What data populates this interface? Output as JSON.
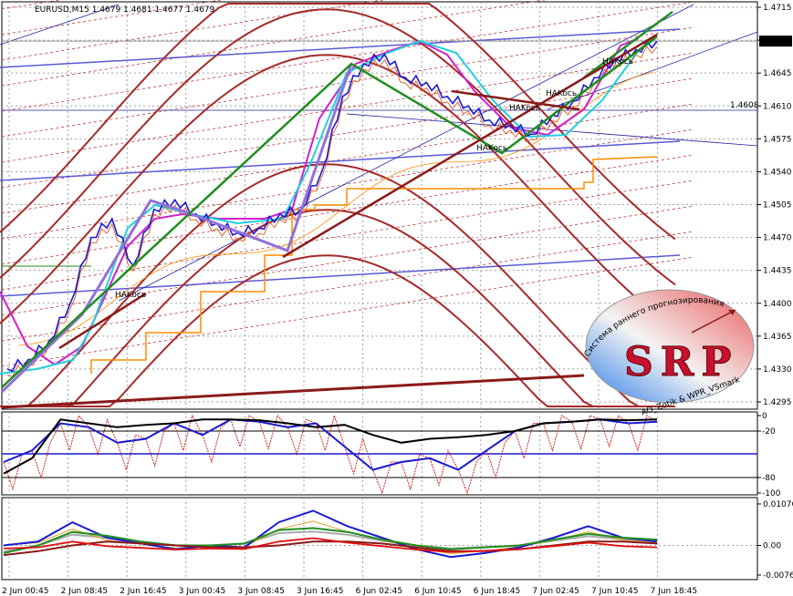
{
  "window": {
    "symbol_header": "EURUSD,M15  1.4679 1.4681 1.4677 1.4679"
  },
  "colors": {
    "background": "#ffffff",
    "grid": "#a0a0a0",
    "candle": "#1a1ad0",
    "green_trend": "#1f8f1f",
    "maroon_trend": "#8b1a1a",
    "envelope": "#a52a2a",
    "dashed_band": "#c83232",
    "violet_channel": "#5a5ad6",
    "lilac_pattern": "#9370db",
    "orange_step": "#ff8c00",
    "magenta": "#d020d0",
    "cyan": "#20d0e0"
  },
  "price_axis": {
    "ticks": [
      "1.4715",
      "1.4680",
      "1.4645",
      "1.4610",
      "1.4575",
      "1.4540",
      "1.4505",
      "1.4470",
      "1.4435",
      "1.4400",
      "1.4365",
      "1.4330",
      "1.4295"
    ],
    "current_price": "1.4679",
    "hline_price_label": "1.4608"
  },
  "time_axis": {
    "ticks": [
      "2 Jun 00:45",
      "2 Jun 08:45",
      "2 Jun 16:45",
      "3 Jun 00:45",
      "3 Jun 08:45",
      "3 Jun 16:45",
      "6 Jun 02:45",
      "6 Jun 10:45",
      "6 Jun 18:45",
      "7 Jun 02:45",
      "7 Jun 10:45",
      "7 Jun 18:45"
    ]
  },
  "annotations": [
    "HAKocь",
    "HAKocь",
    "HAKocь",
    "HAKocь",
    "HAKocь"
  ],
  "logo": {
    "letters": "SRP",
    "arc_text": "Система раннего прогнозирования",
    "credit": "AO_Zotik & WPR_VSmark"
  },
  "oscillator1": {
    "ticks": [
      "0",
      "-20",
      "-80",
      "-100"
    ]
  },
  "oscillator2": {
    "ticks": [
      "0.01076",
      "0.00",
      "-0.00769"
    ]
  },
  "chart_data": [
    {
      "type": "line",
      "title": "EURUSD,M15",
      "x_range": [
        "2 Jun 00:45",
        "7 Jun 18:45"
      ],
      "ylim": [
        1.4295,
        1.4715
      ],
      "series": [
        {
          "values": [
            1.433,
            1.434,
            1.436,
            1.44,
            1.447,
            1.449,
            1.444,
            1.45,
            1.451,
            1.4495,
            1.4485,
            1.4475,
            1.448,
            1.4495,
            1.45,
            1.454,
            1.462,
            1.4655,
            1.4665,
            1.464,
            1.4635,
            1.462,
            1.461,
            1.4595,
            1.459,
            1.458,
            1.46,
            1.4615,
            1.464,
            1.466,
            1.467,
            1.4679
          ]
        }
      ]
    },
    {
      "type": "line",
      "ylim": [
        -100,
        0
      ],
      "ticks": [
        "0",
        "-20",
        "-80",
        "-100"
      ],
      "series": [
        {
          "values": [
            -60,
            -45,
            -10,
            -15,
            -35,
            -30,
            -10,
            -25,
            -5,
            -8,
            -15,
            -10,
            -40,
            -70,
            -60,
            -55,
            -70,
            -45,
            -20,
            -10,
            -8,
            -5,
            -10,
            -8
          ]
        },
        {
          "values": [
            -75,
            -55,
            -5,
            -10,
            -15,
            -12,
            -10,
            -5,
            -5,
            -6,
            -10,
            -15,
            -12,
            -25,
            -35,
            -30,
            -28,
            -25,
            -20,
            -10,
            -8,
            -5,
            -6,
            -5
          ]
        }
      ]
    },
    {
      "type": "line",
      "ylim": [
        -0.00769,
        0.01076
      ],
      "ticks": [
        "0.01076",
        "0.00",
        "-0.00769"
      ],
      "series": [
        {
          "values": [
            0.0,
            0.001,
            0.006,
            0.002,
            0.0005,
            -0.001,
            0.0,
            -0.0005,
            0.006,
            0.009,
            0.005,
            0.002,
            -0.001,
            -0.003,
            -0.002,
            -0.0005,
            0.002,
            0.005,
            0.002,
            0.001
          ]
        },
        {
          "values": [
            -0.002,
            0.0,
            0.0035,
            0.0025,
            0.001,
            0.0,
            0.0,
            0.0005,
            0.004,
            0.0045,
            0.0035,
            0.0015,
            0.0,
            -0.001,
            -0.0005,
            0.0,
            0.0015,
            0.003,
            0.002,
            0.0015
          ]
        },
        {
          "values": [
            -0.0025,
            -0.0015,
            0.0,
            0.001,
            0.0005,
            0.0,
            -0.0005,
            -0.0005,
            0.0,
            0.001,
            0.001,
            0.0005,
            -0.0005,
            -0.0015,
            -0.0015,
            -0.001,
            0.0,
            0.001,
            0.001,
            0.0005
          ]
        }
      ]
    }
  ]
}
